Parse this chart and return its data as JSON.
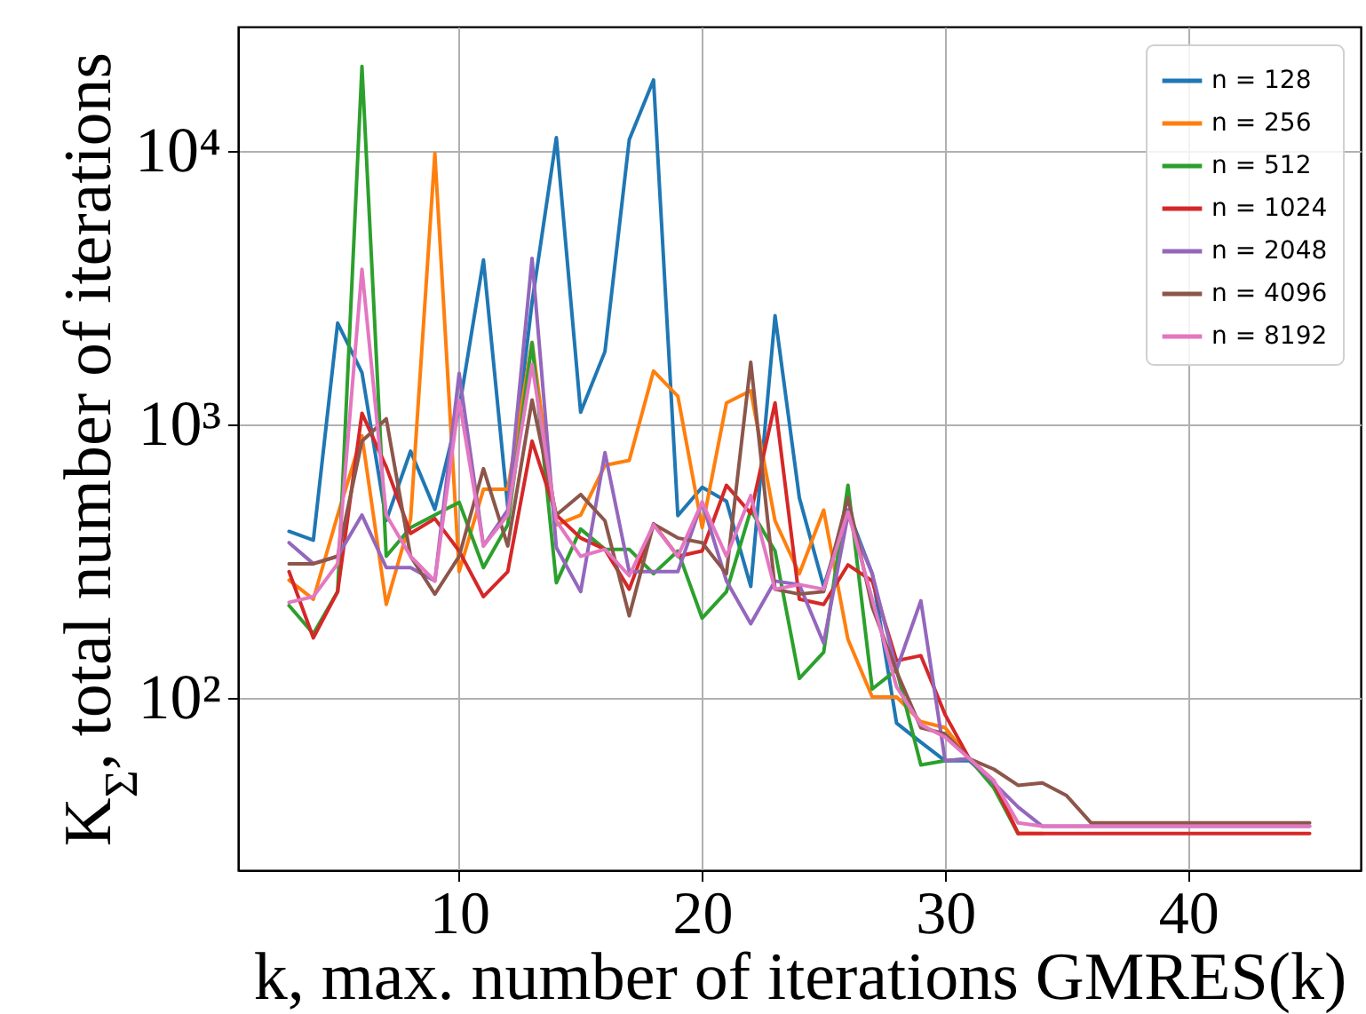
{
  "chart_data": {
    "type": "line",
    "xlabel": "k, max. number of iterations GMRES(k)",
    "ylabel": "K$_{Σ}$, total number of iterations",
    "log": "y",
    "grid": true,
    "legend": "top right",
    "marker": "none",
    "x": [
      3,
      4,
      5,
      6,
      7,
      8,
      9,
      10,
      11,
      12,
      13,
      14,
      15,
      16,
      17,
      18,
      19,
      20,
      21,
      22,
      23,
      24,
      25,
      26,
      27,
      28,
      29,
      30,
      31,
      32,
      33,
      34,
      35,
      36,
      37,
      38,
      39,
      40,
      41,
      42,
      43,
      44,
      45
    ],
    "xlim": [
      0.9,
      47.1
    ],
    "xticks": [
      10,
      20,
      30,
      40
    ],
    "ylim": [
      23.5,
      28500
    ],
    "yticks": [
      {
        "value": 100,
        "label": "10²"
      },
      {
        "value": 1000,
        "label": "10³"
      },
      {
        "value": 10000,
        "label": "10⁴"
      }
    ],
    "series": [
      {
        "name": "n = 128",
        "color": "#1f77b4",
        "values": [
          407,
          378,
          2350,
          1550,
          446,
          800,
          490,
          1140,
          4000,
          500,
          2800,
          11200,
          1110,
          1850,
          11000,
          18200,
          465,
          590,
          525,
          256,
          2500,
          540,
          256,
          487,
          285,
          81,
          69,
          59,
          59,
          49,
          null,
          null,
          null,
          null,
          null,
          null,
          null,
          null,
          null,
          null,
          null,
          null,
          null
        ]
      },
      {
        "name": "n = 256",
        "color": "#ff7f0e",
        "values": [
          270,
          230,
          467,
          910,
          220,
          450,
          9800,
          290,
          580,
          580,
          2000,
          430,
          467,
          710,
          740,
          1570,
          1270,
          420,
          1200,
          1330,
          445,
          285,
          487,
          164,
          101,
          101,
          82,
          78,
          60,
          50,
          32,
          32,
          null,
          null,
          null,
          null,
          null,
          null,
          null,
          null,
          null,
          null,
          null
        ]
      },
      {
        "name": "n = 512",
        "color": "#2ca02c",
        "values": [
          218,
          172,
          245,
          20400,
          330,
          420,
          467,
          520,
          300,
          430,
          1990,
          264,
          415,
          350,
          350,
          285,
          345,
          196,
          245,
          487,
          345,
          118,
          147,
          600,
          108,
          127,
          57,
          59,
          60,
          47,
          32,
          null,
          null,
          null,
          null,
          null,
          null,
          null,
          null,
          null,
          null,
          null,
          null
        ]
      },
      {
        "name": "n = 1024",
        "color": "#d62728",
        "values": [
          290,
          166,
          245,
          1100,
          700,
          400,
          453,
          345,
          235,
          290,
          870,
          467,
          385,
          350,
          250,
          433,
          330,
          345,
          600,
          473,
          1200,
          230,
          220,
          307,
          268,
          137,
          143,
          87,
          60,
          49,
          32,
          32,
          32,
          32,
          32,
          32,
          32,
          32,
          32,
          32,
          32,
          32,
          32
        ]
      },
      {
        "name": "n = 2048",
        "color": "#9467bd",
        "values": [
          370,
          310,
          330,
          467,
          300,
          300,
          268,
          1540,
          360,
          487,
          4050,
          355,
          245,
          790,
          290,
          290,
          290,
          520,
          268,
          187,
          268,
          260,
          159,
          467,
          285,
          127,
          227,
          59,
          60,
          49,
          40,
          34,
          34,
          34,
          34,
          34,
          34,
          34,
          34,
          34,
          34,
          34,
          34
        ]
      },
      {
        "name": "n = 4096",
        "color": "#8c564b",
        "values": [
          310,
          310,
          330,
          870,
          1050,
          330,
          240,
          330,
          690,
          360,
          1230,
          467,
          555,
          445,
          200,
          433,
          385,
          370,
          285,
          1690,
          250,
          240,
          245,
          540,
          215,
          125,
          78,
          74,
          60,
          55,
          48,
          49,
          44,
          35,
          35,
          35,
          35,
          35,
          35,
          35,
          35,
          35,
          35
        ]
      },
      {
        "name": "n = 8192",
        "color": "#e377c2",
        "values": [
          224,
          235,
          310,
          3700,
          467,
          330,
          268,
          1230,
          360,
          467,
          1660,
          445,
          330,
          350,
          280,
          430,
          330,
          520,
          330,
          550,
          250,
          260,
          250,
          480,
          230,
          110,
          80,
          72,
          60,
          50,
          35,
          34,
          34,
          34,
          34,
          34,
          34,
          34,
          34,
          34,
          34,
          34,
          34
        ]
      }
    ]
  }
}
